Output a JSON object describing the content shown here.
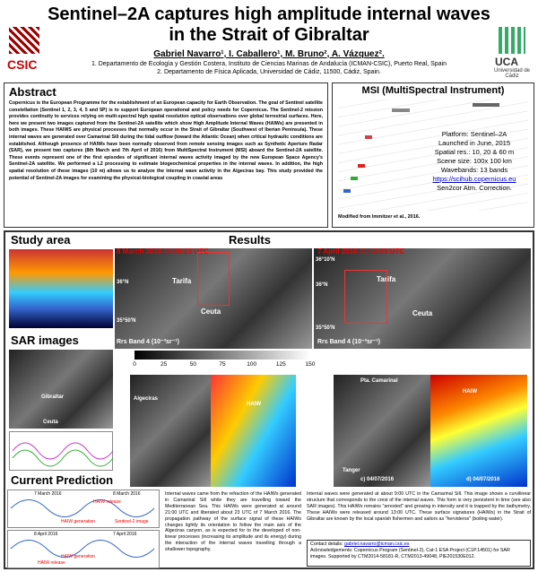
{
  "header": {
    "title_lines": [
      "Sentinel–2A captures high amplitude internal waves",
      "in the Strait of Gibraltar"
    ],
    "authors": "Gabriel Navarro¹, I. Caballero¹, M. Bruno², A. Vázquez².",
    "affiliations": [
      "1. Departamento de Ecología y Gestión Costera, Instituto de Ciencias Marinas de Andalucía (ICMAN-CSIC), Puerto Real, Spain",
      "2. Departamento de Física Aplicada, Universidad de Cádiz, 11500, Cádiz, Spain."
    ],
    "logo_left": "CSIC",
    "logo_right": "UCA",
    "logo_right_sub": "Universidad de Cádiz"
  },
  "abstract": {
    "heading": "Abstract",
    "text": "Copernicus is the European Programme for the establishment of an European capacity for Earth Observation. The goal of Sentinel satellite constellation (Sentinel 1, 2, 3, 4, 5 and 5P) is to support European operational and policy needs for Copernicus. The Sentinel-2 mission provides continuity to services relying on multi-spectral high spatial resolution optical observations over global terrestrial surfaces. Here, here we present two images captured from the Sentinel-2A satellite which show High Amplitude Internal Waves (HAIWs) are presented in both images. These HAIWS are physical processes that normally occur in the Strait of Gibraltar (Southwest of Iberian Peninsula). These internal waves are generated over Camarinal Sill during the tidal outflow (toward the Atlantic Ocean) when critical hydraulic conditions are established. Although presence of HAIWs have been normally observed from remote sensing images such as Synthetic Aperture Radar (SAR), we present two captures (8th March and 7th April of 2016) from MultiSpectral Instrument (MSI) aboard the Sentinel-2A satellite. These events represent one of the first episodes of significant internal waves activity imaged by the new European Space Agency's Sentinel-2A satellite. We performed a L2 processing to estimate biogeochemical properties in the internal waves. In addition, the high spatial resolution of these images (10 m) allows us to analyze the internal wave activity in the Algeciras bay. This study provided the potential of Sentinel-2A images for examining the physical-biological coupling in coastal areas"
  },
  "msi": {
    "heading": "MSI (MultiSpectral Instrument)",
    "lines": [
      "Platform: Sentinel–2A",
      "Launched in June, 2015",
      "Spatial res.: 10, 20 & 60 m",
      "Scene size: 100x 100 km",
      "Wavebands: 13 bands",
      "https://scihub.copernicus.eu",
      "Sen2cor Atm. Correction."
    ],
    "footnote": "Modified from Immitzer et al., 2016."
  },
  "study_area": {
    "heading": "Study area"
  },
  "results": {
    "heading": "Results",
    "panel_1": {
      "date": "8 March 2016 11:20:23 UTC",
      "labels": [
        "36°N",
        "35°50'N",
        "Tarifa",
        "Ceuta"
      ],
      "band": "Rrs Band 4 (10⁻³sr⁻¹)"
    },
    "panel_2": {
      "date": "7 April 2016 11:12:23 UTC",
      "labels": [
        "36°10'N",
        "36°N",
        "35°50'N",
        "Tarifa",
        "Ceuta"
      ],
      "band": "Rrs Band 4 (10⁻³sr⁻¹)"
    },
    "colorbar_ticks": [
      0,
      25,
      50,
      75,
      100,
      125,
      150
    ],
    "zoom_left": [
      "Algeciras",
      "HAIW"
    ],
    "zoom_right": [
      "Pta. Camarinal",
      "HAIW",
      "Tanger",
      "c) 04/07/2016",
      "d) 04/07/2016"
    ],
    "text_left": "Internal waves came from the refraction of the HAIWs generated in Camarinal Sill while they are travelling toward the Mediterranean Sea. This HAIWs were generated at around 21:00 UTC and liberated about 23 UTC of 7 March 2016. The propagation pathway of the surface signal of these HAIWs changes lightly its orientation to follow the main axis of the Algeciras canyon, as is expected for to the developed of non-linear processes (increasing its amplitude and its energy) during the interaction of the internal waves travelling through a shallower topography.",
    "text_right": "Internal waves were generated at about 9:00 UTC in the Camarinal Sill. This image shows a curvilinear structure that corresponds to the crest of the internal waves. This form is very persistent in time (see also SAR images). This HAIWs remains \"arrested\" and growing in intensity and it is trapped by the bathymetry. These HAIWs were released around 13:00 UTC. These surface signatures (HAIWs) in the Strait of Gibraltar are known by the local spanish fishermen and sailors as \"hervideros\" (boiling water)."
  },
  "sar": {
    "heading": "SAR images",
    "labels": [
      "Gibraltar",
      "Ceuta"
    ]
  },
  "current_prediction": {
    "heading": "Current Prediction",
    "plot_1": [
      "7 March 2016",
      "8 March 2016",
      "HAIW release",
      "HAIW generation",
      "Sentinel-2 image"
    ],
    "plot_2": [
      "8 April 2016",
      "7 April 2016",
      "HAIW generation",
      "HAIW release"
    ]
  },
  "contact": {
    "label": "Contact details:",
    "email": "gabriel.navarro@icman.csic.es",
    "acknowledgements": "Acknowledgements: Copernicus Program (Sentinel-2), Cat-1 ESA Project (C1P.14501) for SAR images. Supported by CTM2014-58181-R, CTM2013-49048, PIE201530E012."
  }
}
